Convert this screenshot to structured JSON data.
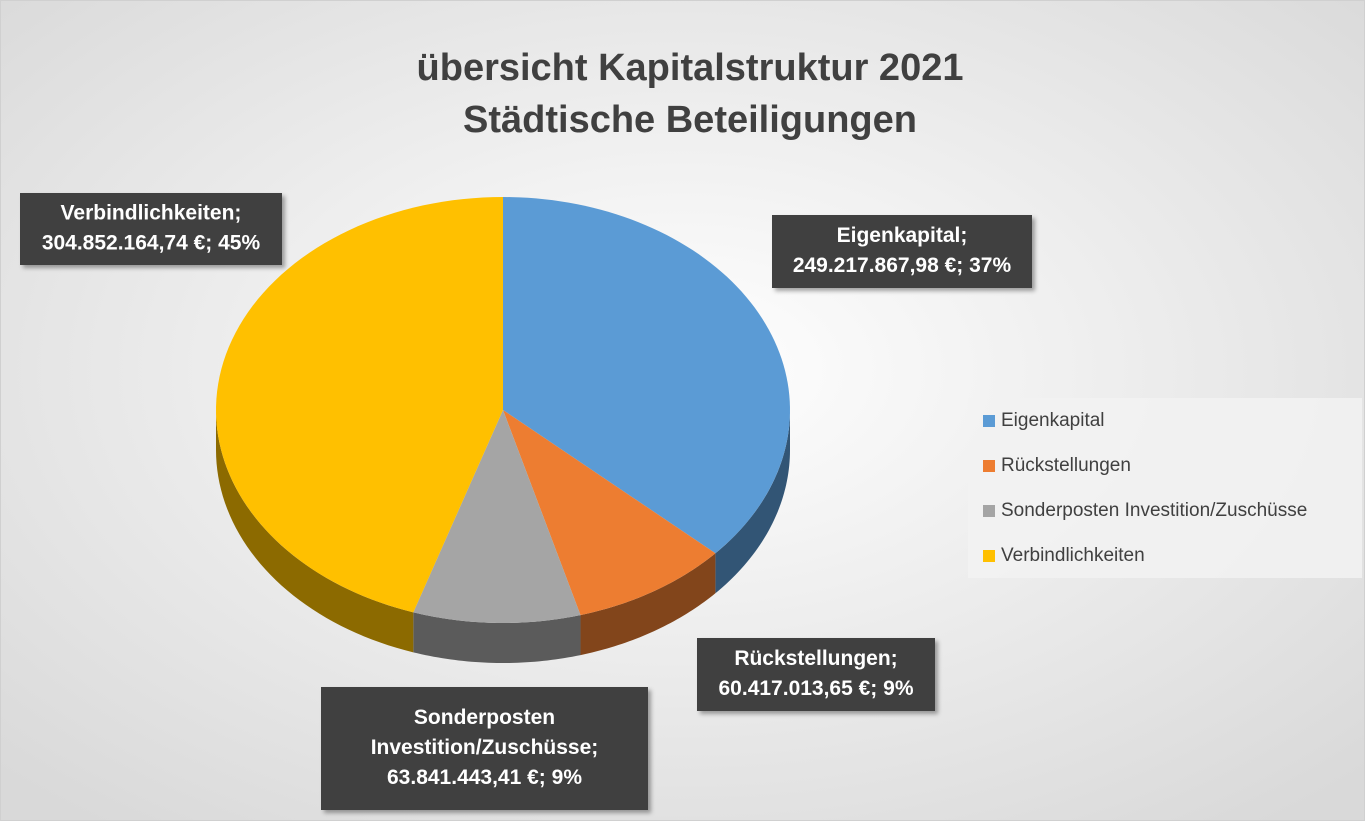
{
  "chart_data": {
    "type": "pie",
    "title": [
      "übersicht Kapitalstruktur 2021",
      "Städtische Beteiligungen"
    ],
    "categories": [
      "Eigenkapital",
      "Rückstellungen",
      "Sonderposten Investition/Zuschüsse",
      "Verbindlichkeiten"
    ],
    "values": [
      249217867.98,
      60417013.65,
      63841443.41,
      304852164.74
    ],
    "value_labels": [
      "249.217.867,98 €; 37%",
      "60.417.013,65 €; 9%",
      "63.841.443,41 €; 9%",
      "304.852.164,74 €; 45%"
    ],
    "label_lines": [
      [
        "Eigenkapital;"
      ],
      [
        "Rückstellungen;"
      ],
      [
        "Sonderposten",
        "Investition/Zuschüsse;"
      ],
      [
        "Verbindlichkeiten;"
      ]
    ],
    "colors": [
      "#5b9bd5",
      "#ed7d31",
      "#a5a5a5",
      "#ffc000"
    ],
    "legend": "right"
  }
}
